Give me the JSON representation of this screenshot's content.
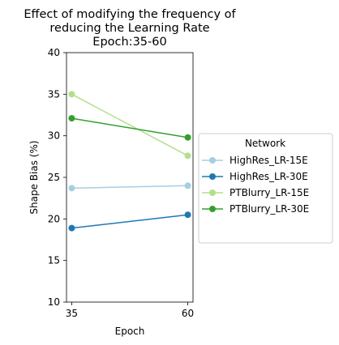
{
  "chart_data": {
    "type": "line",
    "title": [
      "Effect of modifying the frequency of",
      "reducing the Learning Rate",
      "Epoch:35-60"
    ],
    "xlabel": "Epoch",
    "ylabel": "Shape Bias (%)",
    "x": [
      35,
      60
    ],
    "xticks": [
      "35",
      "60"
    ],
    "ylim": [
      10,
      40
    ],
    "yticks": [
      "10",
      "15",
      "20",
      "25",
      "30",
      "35",
      "40"
    ],
    "grid": false,
    "legend": {
      "title": "Network",
      "placement": "outside-right"
    },
    "series": [
      {
        "name": "HighRes_LR-15E",
        "color": "#a6cee3",
        "values": [
          23.7,
          24.0
        ]
      },
      {
        "name": "HighRes_LR-30E",
        "color": "#1f78b4",
        "values": [
          18.9,
          20.5
        ]
      },
      {
        "name": "PTBlurry_LR-15E",
        "color": "#b2df8a",
        "values": [
          35.0,
          27.6
        ]
      },
      {
        "name": "PTBlurry_LR-30E",
        "color": "#33a02c",
        "values": [
          32.1,
          29.8
        ]
      }
    ]
  }
}
